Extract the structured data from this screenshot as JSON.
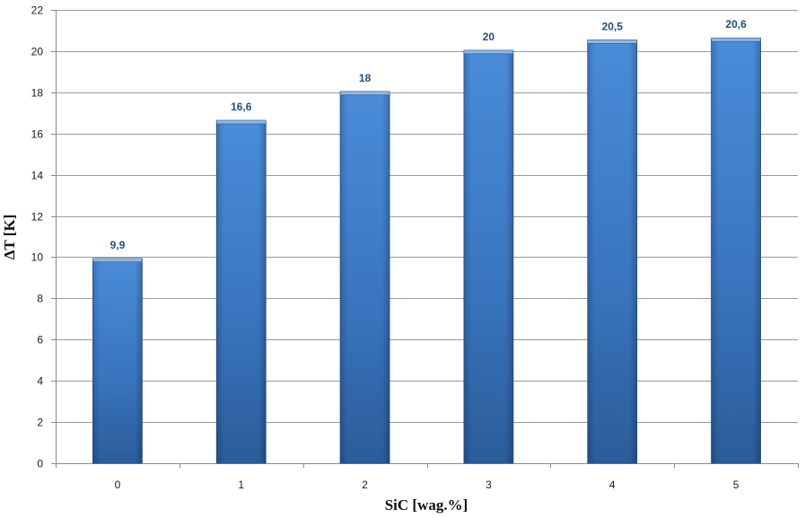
{
  "chart_data": {
    "type": "bar",
    "categories": [
      "0",
      "1",
      "2",
      "3",
      "4",
      "5"
    ],
    "values": [
      9.9,
      16.6,
      18,
      20,
      20.5,
      20.6
    ],
    "data_labels": [
      "9,9",
      "16,6",
      "18",
      "20",
      "20,5",
      "20,6"
    ],
    "title": "",
    "xlabel": "SiC [wag.%]",
    "ylabel": "ΔT [K]",
    "ylim": [
      0,
      22
    ],
    "yticks": [
      0,
      2,
      4,
      6,
      8,
      10,
      12,
      14,
      16,
      18,
      20,
      22
    ],
    "grid": true,
    "legend": "none",
    "colors": {
      "bar_light": "#4f8fd6",
      "bar_mid": "#3c7ac4",
      "bar_dark": "#2a5a96",
      "bar_top": "#8ab8ea",
      "grid": "#9a9a9a",
      "label": "#1f4e79"
    }
  }
}
